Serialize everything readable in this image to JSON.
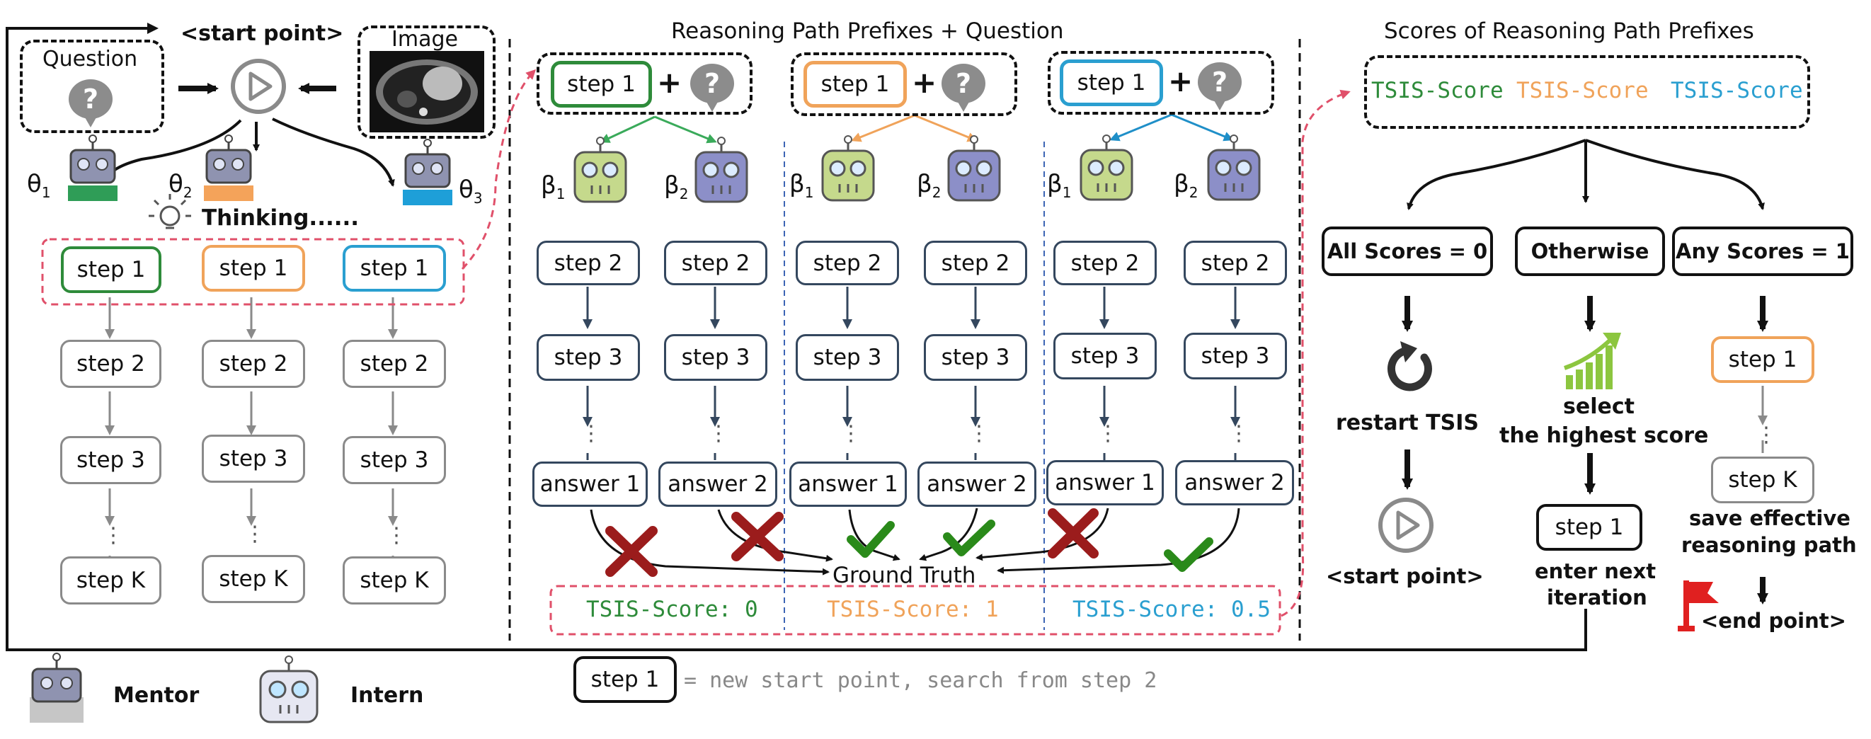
{
  "left": {
    "start_point_label": "<start point>",
    "question_label": "Question",
    "image_label": "Image",
    "question_mark": "?",
    "theta": [
      "θ",
      "θ",
      "θ"
    ],
    "theta_sub": [
      "1",
      "2",
      "3"
    ],
    "thinking": "Thinking......",
    "steps": [
      "step 1",
      "step 2",
      "step 3",
      "step K"
    ],
    "ellipsis": "⋮"
  },
  "middle": {
    "header": "Reasoning Path Prefixes + Question",
    "prefix_step": "step 1",
    "plus": "+",
    "beta": [
      "β",
      "β"
    ],
    "beta_sub": [
      "1",
      "2"
    ],
    "steps": [
      "step 2",
      "step 3"
    ],
    "answers": [
      "answer 1",
      "answer 2"
    ],
    "ground_truth": "Ground Truth",
    "scores": [
      "TSIS-Score: 0",
      "TSIS-Score: 1",
      "TSIS-Score: 0.5"
    ]
  },
  "right": {
    "header": "Scores of Reasoning Path Prefixes",
    "tsis": [
      "TSIS-Score",
      "TSIS-Score",
      "TSIS-Score"
    ],
    "cases": [
      "All Scores = 0",
      "Otherwise",
      "Any Scores = 1"
    ],
    "restart": "restart TSIS",
    "start_point_label": "<start point>",
    "select_line1": "select",
    "select_line2": "the highest score",
    "step1": "step 1",
    "enter_line1": "enter next",
    "enter_line2": "iteration",
    "stepk": "step K",
    "save_line1": "save effective",
    "save_line2": "reasoning path",
    "end_point": "<end point>"
  },
  "legend": {
    "mentor": "Mentor",
    "intern": "Intern",
    "step1": "step 1",
    "note": "= new start point, search from step 2"
  },
  "colors": {
    "green": "#2e8b3a",
    "orange": "#f0a35a",
    "blue": "#2a9fd0",
    "red_dash": "#e0506a",
    "cross": "#9b1c1c",
    "check": "#2a8a1a"
  }
}
